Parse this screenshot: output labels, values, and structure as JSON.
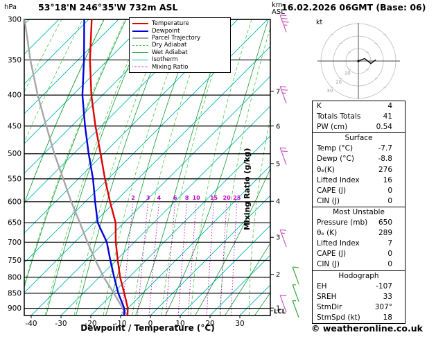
{
  "header": {
    "pressure_unit_label": "hPa",
    "station_title": "53°18'N 246°35'W 732m ASL",
    "run_title": "16.02.2026 06GMT (Base: 06)",
    "altitude_axis_label_line1": "km",
    "altitude_axis_label_line2": "ASL"
  },
  "axes": {
    "bottom_axis_label": "Dewpoint / Temperature (°C)",
    "mixing_ratio_axis_label": "Mixing Ratio (g/kg)",
    "pressure_ticks_hpa": [
      300,
      350,
      400,
      450,
      500,
      550,
      600,
      650,
      700,
      750,
      800,
      850,
      900
    ],
    "temperature_ticks_c": [
      -40,
      -30,
      -20,
      -10,
      0,
      10,
      20,
      30
    ],
    "altitude_ticks_km": [
      7,
      6,
      5,
      4,
      3,
      2,
      1
    ],
    "lcl_label": "LCL"
  },
  "legend_items": [
    {
      "label": "Temperature",
      "color": "#e00000",
      "style": "solid",
      "thick": true
    },
    {
      "label": "Dewpoint",
      "color": "#0000dd",
      "style": "solid",
      "thick": true
    },
    {
      "label": "Parcel Trajectory",
      "color": "#a6a6a6",
      "style": "solid",
      "thick": true
    },
    {
      "label": "Dry Adiabat",
      "color": "#44cc44",
      "style": "dashed",
      "thick": false
    },
    {
      "label": "Wet Adiabat",
      "color": "#119933",
      "style": "solid",
      "thick": false
    },
    {
      "label": "Isotherm",
      "color": "#00b4b4",
      "style": "solid",
      "thick": false
    },
    {
      "label": "Mixing Ratio",
      "color": "#c800c8",
      "style": "dotted",
      "thick": false
    }
  ],
  "mixing_ratio_values_gkg": [
    2,
    3,
    4,
    6,
    8,
    10,
    15,
    20,
    25
  ],
  "hodograph": {
    "unit_label": "kt",
    "ring_labels_kt": [
      10,
      20,
      30
    ],
    "trace_kt": [
      [
        0,
        0
      ],
      [
        5,
        2
      ],
      [
        10,
        -2
      ],
      [
        14,
        1
      ]
    ]
  },
  "stats": {
    "top_rows": [
      {
        "label": "K",
        "value": "4"
      },
      {
        "label": "Totals Totals",
        "value": "41"
      },
      {
        "label": "PW (cm)",
        "value": "0.54"
      }
    ],
    "sections": [
      {
        "title": "Surface",
        "rows": [
          {
            "label": "Temp (°C)",
            "value": "-7.7"
          },
          {
            "label": "Dewp (°C)",
            "value": "-8.8"
          },
          {
            "label": "θₑ(K)",
            "value": "276"
          },
          {
            "label": "Lifted Index",
            "value": "16"
          },
          {
            "label": "CAPE (J)",
            "value": "0"
          },
          {
            "label": "CIN (J)",
            "value": "0"
          }
        ]
      },
      {
        "title": "Most Unstable",
        "rows": [
          {
            "label": "Pressure (mb)",
            "value": "650"
          },
          {
            "label": "θₑ (K)",
            "value": "289"
          },
          {
            "label": "Lifted Index",
            "value": "7"
          },
          {
            "label": "CAPE (J)",
            "value": "0"
          },
          {
            "label": "CIN (J)",
            "value": "0"
          }
        ]
      },
      {
        "title": "Hodograph",
        "rows": [
          {
            "label": "EH",
            "value": "-107"
          },
          {
            "label": "SREH",
            "value": "33"
          },
          {
            "label": "StmDir",
            "value": "307°"
          },
          {
            "label": "StmSpd (kt)",
            "value": "18"
          }
        ]
      }
    ]
  },
  "footer": {
    "copyright": "© weatheronline.co.uk"
  },
  "chart_data": {
    "type": "line",
    "title": "Skew-T log-P sounding",
    "x_axis_label": "Dewpoint / Temperature (°C)",
    "y_axis_label": "hPa",
    "pressure_axis_range_hpa": [
      300,
      925
    ],
    "temperature_axis_range_c": [
      -40,
      35
    ],
    "pressure_levels_hpa": [
      925,
      900,
      850,
      800,
      750,
      700,
      650,
      600,
      550,
      500,
      450,
      400,
      350,
      300
    ],
    "series": [
      {
        "name": "Temperature",
        "color": "#e00000",
        "values_c": [
          -7.7,
          -8.3,
          -11,
          -14,
          -16.5,
          -19,
          -21,
          -25,
          -29,
          -33,
          -37.5,
          -42,
          -46,
          -49.5
        ]
      },
      {
        "name": "Dewpoint",
        "color": "#0000dd",
        "values_c": [
          -8.8,
          -9.5,
          -13,
          -16,
          -19,
          -22,
          -27,
          -30,
          -33,
          -37,
          -41,
          -45,
          -48,
          -52
        ]
      },
      {
        "name": "Parcel Trajectory",
        "color": "#a6a6a6",
        "values_c": [
          -7.7,
          -10,
          -14.5,
          -19.5,
          -24,
          -28.5,
          -33,
          -38,
          -43,
          -48.5,
          -54,
          -60,
          -66,
          -72
        ]
      }
    ],
    "wind_barbs": {
      "upper_color": "#cc55bb",
      "lower_color": "#33aa33",
      "upper": [
        {
          "pressure_hpa": 305,
          "speed_kt": 35
        },
        {
          "pressure_hpa": 400,
          "speed_kt": 25
        },
        {
          "pressure_hpa": 505,
          "speed_kt": 20
        },
        {
          "pressure_hpa": 690,
          "speed_kt": 15
        },
        {
          "pressure_hpa": 885,
          "speed_kt": 10
        }
      ],
      "lower": [
        {
          "pressure_hpa": 795,
          "speed_kt": 10
        },
        {
          "pressure_hpa": 850,
          "speed_kt": 8
        },
        {
          "pressure_hpa": 903,
          "speed_kt": 5
        }
      ]
    }
  }
}
